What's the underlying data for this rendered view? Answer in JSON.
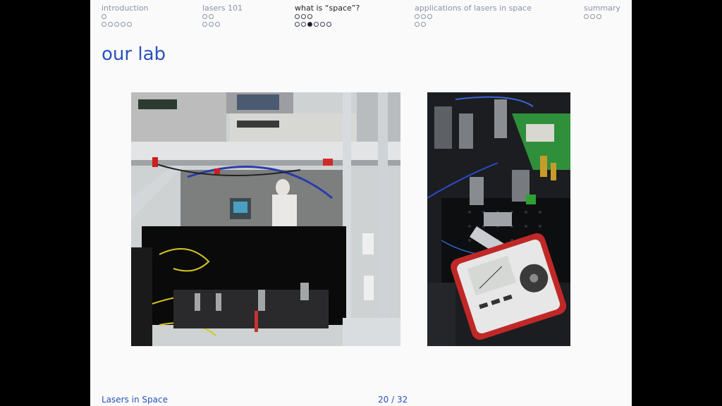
{
  "nav": [
    {
      "title": "introduction",
      "rows": [
        1,
        5
      ],
      "active_dot": null,
      "active": false
    },
    {
      "title": "lasers 101",
      "rows": [
        2,
        3
      ],
      "active_dot": null,
      "active": false
    },
    {
      "title": "what is “space”?",
      "rows": [
        3,
        6
      ],
      "active_dot": [
        1,
        2
      ],
      "active": true
    },
    {
      "title": "applications of lasers in space",
      "rows": [
        3,
        2
      ],
      "active_dot": null,
      "active": false
    },
    {
      "title": "summary",
      "rows": [
        3
      ],
      "active_dot": null,
      "active": false
    }
  ],
  "frame_title": "our lab",
  "footer": {
    "left": "Lasers in Space",
    "page": "20 / 32"
  },
  "colors": {
    "title": "#2a52be",
    "nav_inactive": "#8a93a8",
    "background": "#fafafa"
  }
}
